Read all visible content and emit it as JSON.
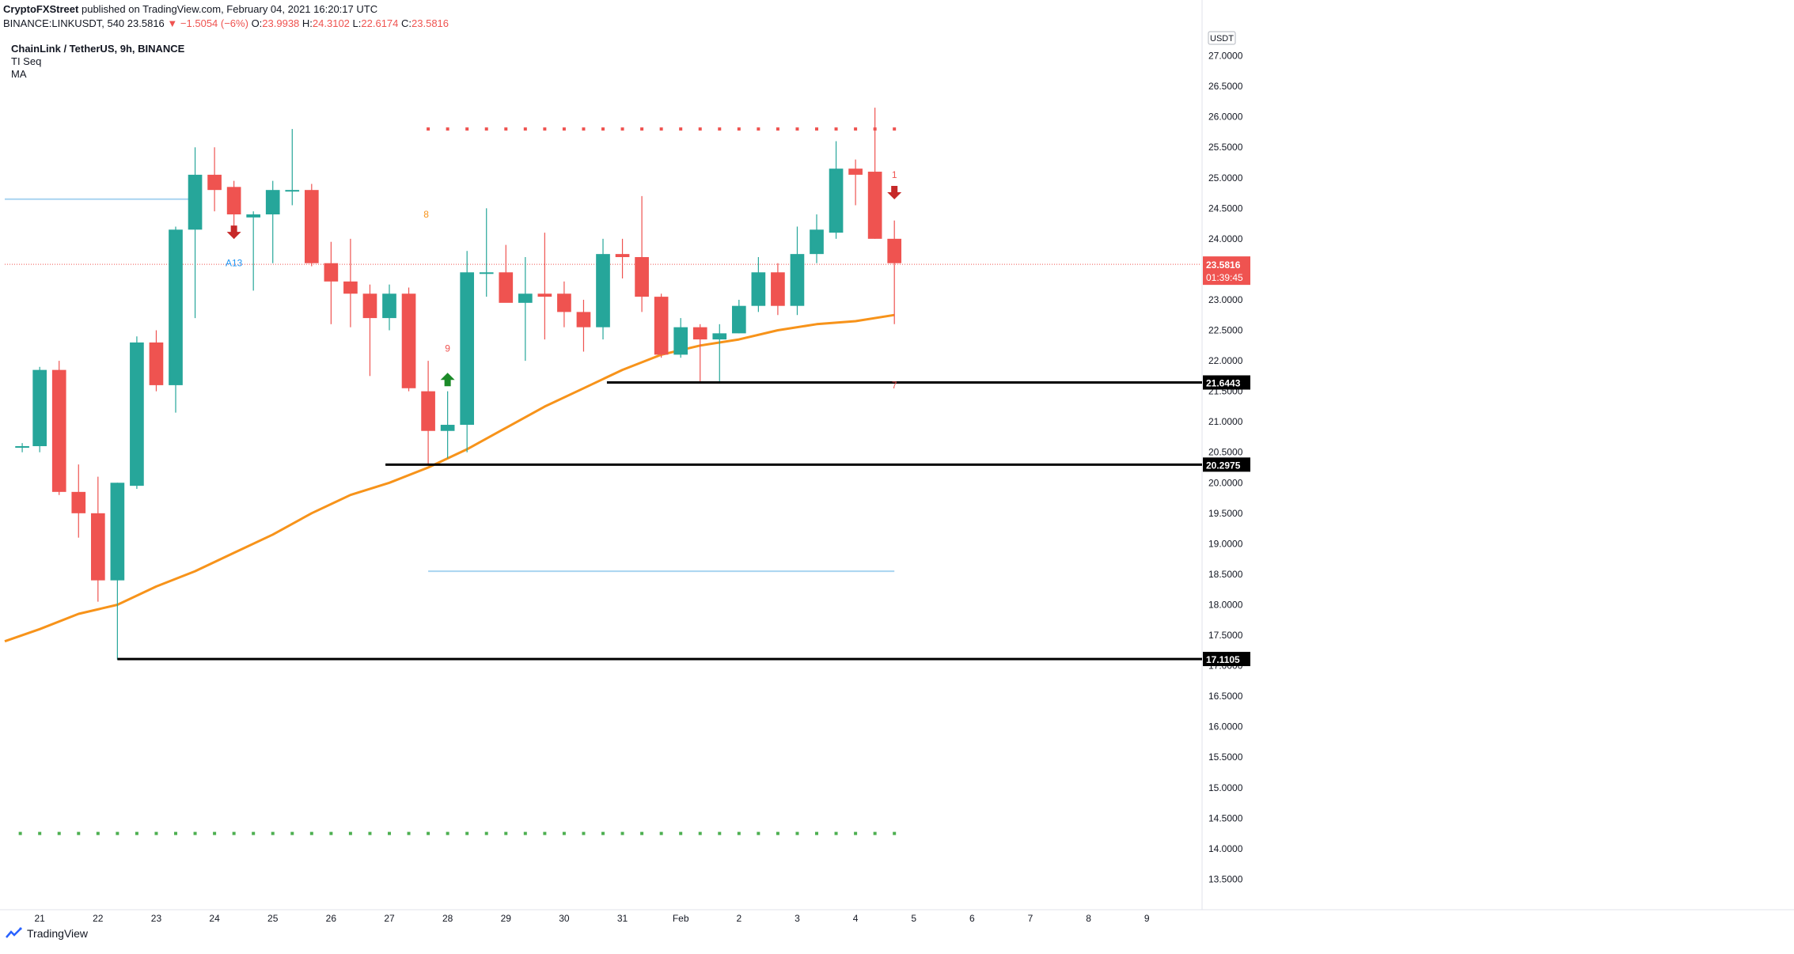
{
  "header": {
    "publisher": "CryptoFXStreet",
    "published_text": "published on TradingView.com, February 04, 2021 16:20:17 UTC",
    "symbol": "BINANCE:LINKUSDT, 540",
    "last": "23.5816",
    "change": "−1.5054 (−6%)",
    "o_label": "O:",
    "o": "23.9938",
    "h_label": "H:",
    "h": "24.3102",
    "l_label": "L:",
    "l": "22.6174",
    "c_label": "C:",
    "c": "23.5816"
  },
  "legend": {
    "pair": "ChainLink / TetherUS, 9h, BINANCE",
    "indicator1": "TI Seq",
    "indicator2": "MA"
  },
  "footer": {
    "brand": "TradingView"
  },
  "colors": {
    "up": "#26a69a",
    "down": "#ef5350",
    "ma": "#f7931a",
    "level": "#000000",
    "light_level": "#a8d4f0",
    "seq_dot_red": "#ef5350",
    "seq_dot_green": "#4caf50",
    "grid": "#f0f3fa"
  },
  "chart_data": {
    "type": "candlestick",
    "title": "ChainLink / TetherUS, 9h, BINANCE",
    "price_unit": "USDT",
    "ylim": [
      13.0,
      27.5
    ],
    "y_ticks": [
      "13.5000",
      "14.0000",
      "14.5000",
      "15.0000",
      "15.5000",
      "16.0000",
      "16.5000",
      "17.0000",
      "17.5000",
      "18.0000",
      "18.5000",
      "19.0000",
      "19.5000",
      "20.0000",
      "20.5000",
      "21.0000",
      "21.5000",
      "22.0000",
      "22.5000",
      "23.0000",
      "23.5000",
      "24.0000",
      "24.5000",
      "25.0000",
      "25.5000",
      "26.0000",
      "26.5000",
      "27.0000"
    ],
    "x_ticks": [
      {
        "label": "21",
        "pos": 0.0
      },
      {
        "label": "22",
        "pos": 3.0
      },
      {
        "label": "23",
        "pos": 6.0
      },
      {
        "label": "24",
        "pos": 9.0
      },
      {
        "label": "25",
        "pos": 12.0
      },
      {
        "label": "26",
        "pos": 15.0
      },
      {
        "label": "27",
        "pos": 18.0
      },
      {
        "label": "28",
        "pos": 21.0
      },
      {
        "label": "29",
        "pos": 24.0
      },
      {
        "label": "30",
        "pos": 27.0
      },
      {
        "label": "31",
        "pos": 30.0
      },
      {
        "label": "Feb",
        "pos": 33.0
      },
      {
        "label": "2",
        "pos": 36.0
      },
      {
        "label": "3",
        "pos": 39.0
      },
      {
        "label": "4",
        "pos": 42.0
      },
      {
        "label": "5",
        "pos": 45.0
      },
      {
        "label": "6",
        "pos": 48.0
      },
      {
        "label": "7",
        "pos": 51.0
      },
      {
        "label": "8",
        "pos": 54.0
      },
      {
        "label": "9",
        "pos": 57.0
      }
    ],
    "xlim": [
      -1.8,
      59.8
    ],
    "candles": [
      {
        "x": -0.9,
        "o": 20.6,
        "h": 20.65,
        "l": 20.5,
        "c": 20.6
      },
      {
        "x": 0.0,
        "o": 20.6,
        "h": 21.9,
        "l": 20.5,
        "c": 21.85
      },
      {
        "x": 1.0,
        "o": 21.85,
        "h": 22.0,
        "l": 19.8,
        "c": 19.85
      },
      {
        "x": 2.0,
        "o": 19.85,
        "h": 20.3,
        "l": 19.1,
        "c": 19.5
      },
      {
        "x": 3.0,
        "o": 19.5,
        "h": 20.1,
        "l": 18.05,
        "c": 18.4
      },
      {
        "x": 4.0,
        "o": 18.4,
        "h": 20.0,
        "l": 17.1,
        "c": 20.0
      },
      {
        "x": 5.0,
        "o": 19.95,
        "h": 22.4,
        "l": 19.9,
        "c": 22.3
      },
      {
        "x": 6.0,
        "o": 22.3,
        "h": 22.5,
        "l": 21.5,
        "c": 21.6
      },
      {
        "x": 7.0,
        "o": 21.6,
        "h": 24.2,
        "l": 21.15,
        "c": 24.15
      },
      {
        "x": 8.0,
        "o": 24.15,
        "h": 25.5,
        "l": 22.7,
        "c": 25.05
      },
      {
        "x": 9.0,
        "o": 25.05,
        "h": 25.5,
        "l": 24.45,
        "c": 24.8
      },
      {
        "x": 10.0,
        "o": 24.85,
        "h": 24.95,
        "l": 24.0,
        "c": 24.4
      },
      {
        "x": 11.0,
        "o": 24.35,
        "h": 24.45,
        "l": 23.15,
        "c": 24.4
      },
      {
        "x": 12.0,
        "o": 24.4,
        "h": 24.95,
        "l": 23.6,
        "c": 24.8
      },
      {
        "x": 13.0,
        "o": 24.8,
        "h": 25.8,
        "l": 24.55,
        "c": 24.8
      },
      {
        "x": 14.0,
        "o": 24.8,
        "h": 24.9,
        "l": 23.55,
        "c": 23.6
      },
      {
        "x": 15.0,
        "o": 23.6,
        "h": 23.95,
        "l": 22.6,
        "c": 23.3
      },
      {
        "x": 16.0,
        "o": 23.3,
        "h": 24.0,
        "l": 22.55,
        "c": 23.1
      },
      {
        "x": 17.0,
        "o": 23.1,
        "h": 23.25,
        "l": 21.75,
        "c": 22.7
      },
      {
        "x": 18.0,
        "o": 22.7,
        "h": 23.25,
        "l": 22.5,
        "c": 23.1
      },
      {
        "x": 19.0,
        "o": 23.1,
        "h": 23.2,
        "l": 21.5,
        "c": 21.55
      },
      {
        "x": 20.0,
        "o": 21.5,
        "h": 22.0,
        "l": 20.3,
        "c": 20.85
      },
      {
        "x": 21.0,
        "o": 20.85,
        "h": 21.5,
        "l": 20.4,
        "c": 20.95
      },
      {
        "x": 22.0,
        "o": 20.95,
        "h": 23.8,
        "l": 20.5,
        "c": 23.45
      },
      {
        "x": 23.0,
        "o": 23.45,
        "h": 24.5,
        "l": 23.05,
        "c": 23.45
      },
      {
        "x": 24.0,
        "o": 23.45,
        "h": 23.9,
        "l": 23.0,
        "c": 22.95
      },
      {
        "x": 25.0,
        "o": 22.95,
        "h": 23.7,
        "l": 22.0,
        "c": 23.1
      },
      {
        "x": 26.0,
        "o": 23.1,
        "h": 24.1,
        "l": 22.35,
        "c": 23.05
      },
      {
        "x": 27.0,
        "o": 23.1,
        "h": 23.3,
        "l": 22.55,
        "c": 22.8
      },
      {
        "x": 28.0,
        "o": 22.8,
        "h": 23.0,
        "l": 22.15,
        "c": 22.55
      },
      {
        "x": 29.0,
        "o": 22.55,
        "h": 24.0,
        "l": 22.35,
        "c": 23.75
      },
      {
        "x": 30.0,
        "o": 23.75,
        "h": 24.0,
        "l": 23.35,
        "c": 23.7
      },
      {
        "x": 31.0,
        "o": 23.7,
        "h": 24.7,
        "l": 22.8,
        "c": 23.05
      },
      {
        "x": 32.0,
        "o": 23.05,
        "h": 23.1,
        "l": 22.05,
        "c": 22.1
      },
      {
        "x": 33.0,
        "o": 22.1,
        "h": 22.7,
        "l": 22.05,
        "c": 22.55
      },
      {
        "x": 34.0,
        "o": 22.55,
        "h": 22.6,
        "l": 21.65,
        "c": 22.35
      },
      {
        "x": 35.0,
        "o": 22.35,
        "h": 22.6,
        "l": 21.65,
        "c": 22.45
      },
      {
        "x": 36.0,
        "o": 22.45,
        "h": 23.0,
        "l": 22.45,
        "c": 22.9
      },
      {
        "x": 37.0,
        "o": 22.9,
        "h": 23.7,
        "l": 22.8,
        "c": 23.45
      },
      {
        "x": 38.0,
        "o": 23.45,
        "h": 23.6,
        "l": 22.75,
        "c": 22.9
      },
      {
        "x": 39.0,
        "o": 22.9,
        "h": 24.2,
        "l": 22.75,
        "c": 23.75
      },
      {
        "x": 40.0,
        "o": 23.75,
        "h": 24.4,
        "l": 23.6,
        "c": 24.15
      },
      {
        "x": 41.0,
        "o": 24.1,
        "h": 25.6,
        "l": 24.0,
        "c": 25.15
      },
      {
        "x": 42.0,
        "o": 25.15,
        "h": 25.3,
        "l": 24.55,
        "c": 25.05
      },
      {
        "x": 43.0,
        "o": 25.1,
        "h": 26.15,
        "l": 24.0,
        "c": 24.0
      },
      {
        "x": 44.0,
        "o": 24.0,
        "h": 24.3,
        "l": 22.6,
        "c": 23.6
      }
    ],
    "ma": [
      [
        -1.8,
        17.4
      ],
      [
        0.0,
        17.6
      ],
      [
        2.0,
        17.85
      ],
      [
        4.0,
        18.0
      ],
      [
        6.0,
        18.3
      ],
      [
        8.0,
        18.55
      ],
      [
        10.0,
        18.85
      ],
      [
        12.0,
        19.15
      ],
      [
        14.0,
        19.5
      ],
      [
        16.0,
        19.8
      ],
      [
        18.0,
        20.0
      ],
      [
        20.0,
        20.25
      ],
      [
        22.0,
        20.55
      ],
      [
        24.0,
        20.9
      ],
      [
        26.0,
        21.25
      ],
      [
        28.0,
        21.55
      ],
      [
        30.0,
        21.85
      ],
      [
        32.0,
        22.1
      ],
      [
        34.0,
        22.25
      ],
      [
        36.0,
        22.35
      ],
      [
        38.0,
        22.5
      ],
      [
        40.0,
        22.6
      ],
      [
        42.0,
        22.65
      ],
      [
        44.0,
        22.75
      ]
    ],
    "levels": [
      {
        "price": 21.6443,
        "from": 29.2,
        "label": "21.6443"
      },
      {
        "price": 20.2975,
        "from": 17.8,
        "label": "20.2975"
      },
      {
        "price": 17.1105,
        "from": 4.0,
        "label": "17.1105"
      }
    ],
    "light_levels": [
      {
        "price": 24.65,
        "from": -1.8,
        "to": 8.0
      },
      {
        "price": 18.55,
        "from": 20.0,
        "to": 44.0
      }
    ],
    "current_price": {
      "price": 23.5816,
      "label": "23.5816",
      "timer": "01:39:45"
    },
    "seq_red_dots": {
      "price": 25.8,
      "from": 20.0,
      "to": 44.0
    },
    "seq_green_dots": {
      "price": 14.25,
      "from": -1.0,
      "to": 44.0
    },
    "annotations": [
      {
        "type": "arrow-down",
        "x": 10.0,
        "price": 24.1,
        "color": "#c62828"
      },
      {
        "type": "text",
        "x": 10.0,
        "price": 23.55,
        "text": "A13",
        "color": "#2196f3"
      },
      {
        "type": "text",
        "x": 19.9,
        "price": 24.35,
        "text": "8",
        "color": "#f7931a"
      },
      {
        "type": "text",
        "x": 21.0,
        "price": 22.15,
        "text": "9",
        "color": "#ef5350"
      },
      {
        "type": "arrow-up",
        "x": 21.0,
        "price": 21.7,
        "color": "#1b8a28"
      },
      {
        "type": "text",
        "x": 44.0,
        "price": 25.0,
        "text": "1",
        "color": "#ef5350"
      },
      {
        "type": "arrow-down",
        "x": 44.0,
        "price": 24.75,
        "color": "#c62828"
      },
      {
        "type": "text",
        "x": 44.0,
        "price": 21.55,
        "text": "7",
        "color": "#ef5350"
      }
    ]
  }
}
